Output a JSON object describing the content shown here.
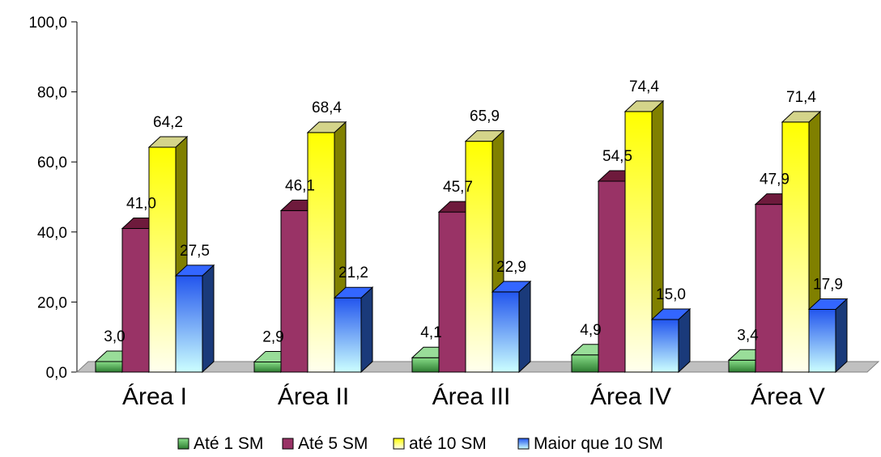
{
  "chart_data": {
    "type": "bar",
    "categories": [
      "Área I",
      "Área II",
      "Área III",
      "Área IV",
      "Área V"
    ],
    "series": [
      {
        "name": "Até 1 SM",
        "values": [
          3.0,
          2.9,
          4.1,
          4.9,
          3.4
        ],
        "labels": [
          "3,0",
          "2,9",
          "4,1",
          "4,9",
          "3,4"
        ],
        "colors": {
          "top": "#99dd99",
          "front_top": "#88dd88",
          "front_bottom": "#2e7d32",
          "side": "#1b5e20"
        }
      },
      {
        "name": "Até 5 SM",
        "values": [
          41.0,
          46.1,
          45.7,
          54.5,
          47.9
        ],
        "labels": [
          "41,0",
          "46,1",
          "45,7",
          "54,5",
          "47,9"
        ],
        "colors": {
          "top": "#6e1a3c",
          "front_top": "#993366",
          "front_bottom": "#993366",
          "side": "#5a1530"
        }
      },
      {
        "name": "até 10 SM",
        "values": [
          64.2,
          68.4,
          65.9,
          74.4,
          71.4
        ],
        "labels": [
          "64,2",
          "68,4",
          "65,9",
          "74,4",
          "71,4"
        ],
        "colors": {
          "top": "#d4d48a",
          "front_top": "#ffff00",
          "front_bottom": "#ffffee",
          "side": "#808000"
        }
      },
      {
        "name": "Maior que 10 SM",
        "values": [
          27.5,
          21.2,
          22.9,
          15.0,
          17.9
        ],
        "labels": [
          "27,5",
          "21,2",
          "22,9",
          "15,0",
          "17,9"
        ],
        "colors": {
          "top": "#3366ff",
          "front_top": "#2255ee",
          "front_bottom": "#ccffff",
          "side": "#1a3a7a"
        }
      }
    ],
    "y_ticks": [
      "0,0",
      "20,0",
      "40,0",
      "60,0",
      "80,0",
      "100,0"
    ],
    "ylim": [
      0,
      100
    ],
    "xlabel": "",
    "ylabel": "",
    "title": "",
    "grid": false,
    "legend_position": "bottom",
    "floor_color": "#c0c0c0"
  }
}
